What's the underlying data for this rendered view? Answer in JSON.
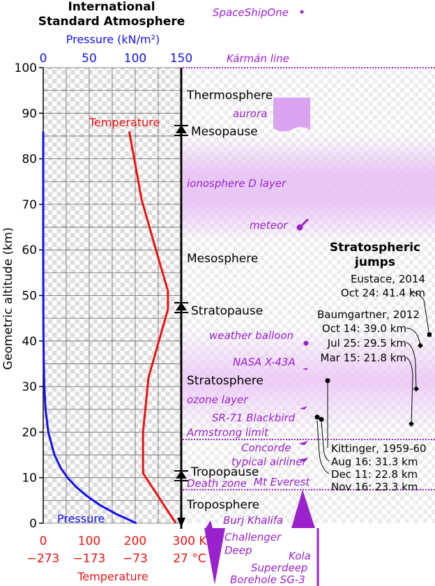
{
  "chart_data": {
    "type": "line",
    "title": "International Standard Atmosphere",
    "ylabel": "Geometric altitude (km)",
    "ylim": [
      0,
      100
    ],
    "y_ticks": [
      0,
      10,
      20,
      30,
      40,
      50,
      60,
      70,
      80,
      90,
      100
    ],
    "top_axis": {
      "label": "Pressure (kN/m²)",
      "ticks": [
        "0",
        "50",
        "100",
        "150"
      ],
      "range": [
        0,
        150
      ]
    },
    "bottom_axis": {
      "label": "Temperature",
      "kelvin_ticks": [
        "0",
        "100",
        "200",
        "300 K"
      ],
      "celsius_ticks": [
        "−273",
        "−173",
        "−73",
        "27 °C"
      ],
      "range_K": [
        0,
        300
      ]
    },
    "grid": true,
    "series": [
      {
        "name": "Temperature",
        "axis": "temperature_K",
        "color": "#ee1111",
        "points": [
          [
            288,
            0
          ],
          [
            217,
            11
          ],
          [
            217,
            20
          ],
          [
            229,
            32
          ],
          [
            271,
            47
          ],
          [
            271,
            51
          ],
          [
            245,
            60
          ],
          [
            214,
            71
          ],
          [
            187,
            86
          ]
        ]
      },
      {
        "name": "Pressure",
        "axis": "pressure_kN_m2",
        "color": "#1111ee",
        "points": [
          [
            101.3,
            0
          ],
          [
            79.5,
            2
          ],
          [
            61.6,
            4
          ],
          [
            47.2,
            6
          ],
          [
            35.6,
            8
          ],
          [
            26.4,
            10
          ],
          [
            19.4,
            12
          ],
          [
            12.1,
            15
          ],
          [
            5.5,
            20
          ],
          [
            2.5,
            25
          ],
          [
            1.2,
            30
          ],
          [
            0.6,
            35
          ],
          [
            0.3,
            40
          ],
          [
            0.14,
            45
          ],
          [
            0.08,
            50
          ],
          [
            0.02,
            60
          ],
          [
            0.005,
            70
          ],
          [
            0.001,
            80
          ],
          [
            0.0003,
            86
          ]
        ]
      }
    ],
    "layers": [
      {
        "name": "Thermosphere",
        "altitude": 94
      },
      {
        "name": "Mesosphere",
        "altitude": 58
      },
      {
        "name": "Stratosphere",
        "altitude": 31
      },
      {
        "name": "Troposphere",
        "altitude": 2
      }
    ],
    "boundaries": [
      {
        "name": "Mesopause",
        "altitude": 86
      },
      {
        "name": "Stratopause",
        "altitude": 47.5
      },
      {
        "name": "Tropopause",
        "altitude": 11
      }
    ],
    "markers": [
      {
        "name": "SpaceShipOne",
        "altitude": 112
      },
      {
        "name": "Kármán line",
        "altitude": 100
      },
      {
        "name": "aurora",
        "altitude": 90
      },
      {
        "name": "ionosphere D layer",
        "altitude": 74
      },
      {
        "name": "meteor",
        "altitude": 65
      },
      {
        "name": "weather balloon",
        "altitude": 40
      },
      {
        "name": "NASA X-43A",
        "altitude": 33
      },
      {
        "name": "ozone layer",
        "altitude": 25
      },
      {
        "name": "SR-71 Blackbird",
        "altitude": 25
      },
      {
        "name": "Armstrong limit",
        "altitude": 19
      },
      {
        "name": "Concorde",
        "altitude": 18
      },
      {
        "name": "typical airliner",
        "altitude": 12
      },
      {
        "name": "Mt Everest",
        "altitude": 8.8
      },
      {
        "name": "Death zone",
        "altitude": 8
      },
      {
        "name": "Burj Khalifa",
        "altitude": 0.8
      },
      {
        "name": "Challenger Deep",
        "altitude": -11
      },
      {
        "name": "Kola Superdeep Borehole SG-3",
        "altitude": -12
      }
    ],
    "stratospheric_jumps": {
      "title": "Stratospheric jumps",
      "groups": [
        {
          "person": "Eustace, 2014",
          "jumps": [
            {
              "date": "Oct 24",
              "altitude": 41.4
            }
          ]
        },
        {
          "person": "Baumgartner, 2012",
          "jumps": [
            {
              "date": "Oct 14",
              "altitude": 39.0
            },
            {
              "date": "Jul 25",
              "altitude": 29.5
            },
            {
              "date": "Mar 15",
              "altitude": 21.8
            }
          ]
        },
        {
          "person": "Kittinger, 1959-60",
          "jumps": [
            {
              "date": "Aug 16",
              "altitude": 31.3
            },
            {
              "date": "Dec 11",
              "altitude": 22.8
            },
            {
              "date": "Nov 16",
              "altitude": 23.3
            }
          ]
        }
      ]
    }
  },
  "text": {
    "title_line1": "International",
    "title_line2": "Standard Atmosphere",
    "pressure_axis_label": "Pressure (kN/m²)",
    "ylabel": "Geometric altitude (km)",
    "temperature_series_label": "Temperature",
    "pressure_series_label": "Pressure",
    "temperature_axis_label": "Temperature",
    "thermosphere": "Thermosphere",
    "mesopause": "Mesopause",
    "mesosphere": "Mesosphere",
    "stratopause": "Stratopause",
    "stratosphere": "Stratosphere",
    "tropopause": "Tropopause",
    "troposphere": "Troposphere",
    "spaceshipone": "SpaceShipOne",
    "karman": "Kármán line",
    "aurora": "aurora",
    "ionosphere": "ionosphere D layer",
    "meteor": "meteor",
    "weather_balloon": "weather balloon",
    "x43a": "NASA X-43A",
    "ozone": "ozone layer",
    "sr71": "SR-71 Blackbird",
    "armstrong": "Armstrong limit",
    "concorde": "Concorde",
    "airliner": "typical airliner",
    "everest": "Mt Everest",
    "death_zone": "Death zone",
    "burj": "Burj Khalifa",
    "challenger1": "Challenger",
    "challenger2": "Deep",
    "kola1": "Kola",
    "kola2": "Superdeep",
    "kola3": "Borehole SG-3",
    "jumps_title1": "Stratospheric",
    "jumps_title2": "jumps",
    "eustace_name": "Eustace, 2014",
    "eustace_1": "Oct 24: 41.4 km",
    "baum_name": "Baumgartner, 2012",
    "baum_1": "Oct 14: 39.0 km",
    "baum_2": "Jul 25: 29.5 km",
    "baum_3": "Mar 15: 21.8 km",
    "kitt_name": "Kittinger, 1959-60",
    "kitt_1": "Aug 16: 31.3 km",
    "kitt_2": "Dec 11: 22.8 km",
    "kitt_3": "Nov 16: 23.3 km"
  },
  "colors": {
    "temperature": "#ee1111",
    "pressure": "#1111ee",
    "annotation": "#9922cc",
    "phenomenon": "#e3b3f2"
  }
}
